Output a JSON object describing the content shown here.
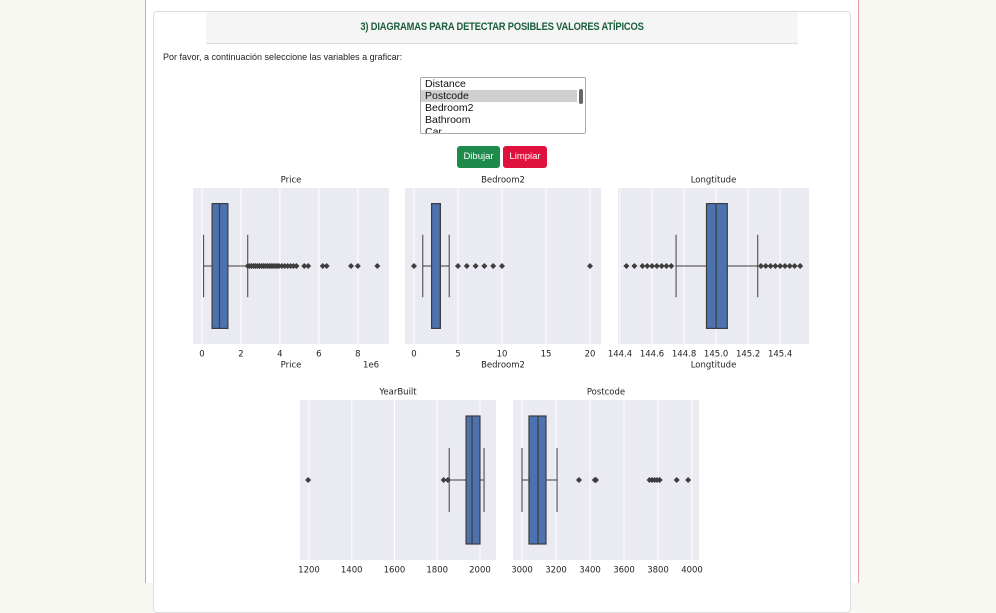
{
  "header": {
    "title": "3) DIAGRAMAS PARA DETECTAR POSIBLES VALORES ATÍPICOS"
  },
  "instructions": "Por favor, a continuación seleccione las variables a graficar:",
  "select": {
    "options": [
      "Distance",
      "Postcode",
      "Bedroom2",
      "Bathroom",
      "Car"
    ],
    "selected": 1
  },
  "buttons": {
    "draw": "Dibujar",
    "clear": "Limpiar"
  },
  "chart_data": [
    {
      "type": "box",
      "title": "Price",
      "xlabel": "Price",
      "offset_label": "1e6",
      "color": "#4c72b0",
      "grid": true,
      "xlim": [
        -0.46,
        9.6
      ],
      "xticks": [
        0,
        2,
        4,
        6,
        8
      ],
      "whisker_low": 0.085,
      "q1": 0.52,
      "median": 0.9,
      "q3": 1.33,
      "whisker_high": 2.35,
      "outliers": [
        2.35,
        2.45,
        2.55,
        2.65,
        2.75,
        2.85,
        2.95,
        3.05,
        3.15,
        3.25,
        3.35,
        3.45,
        3.55,
        3.65,
        3.75,
        3.85,
        3.95,
        4.1,
        4.25,
        4.4,
        4.55,
        4.7,
        4.85,
        5.25,
        5.45,
        6.2,
        6.4,
        7.65,
        8.0,
        9.0
      ]
    },
    {
      "type": "box",
      "title": "Bedroom2",
      "xlabel": "Bedroom2",
      "color": "#4c72b0",
      "grid": true,
      "xlim": [
        -1.02,
        21.25
      ],
      "xticks": [
        0,
        5,
        10,
        15,
        20
      ],
      "whisker_low": 1,
      "q1": 2,
      "median": 3,
      "q3": 3,
      "whisker_high": 4,
      "outliers": [
        0,
        5,
        6,
        7,
        8,
        9,
        10,
        20
      ]
    },
    {
      "type": "box",
      "title": "Longtitude",
      "xlabel": "Longtitude",
      "color": "#4c72b0",
      "grid": true,
      "xlim": [
        144.3875,
        145.58
      ],
      "xticks": [
        144.4,
        144.6,
        144.8,
        {
          "value": 145,
          "label": "145.0"
        },
        145.2,
        145.4
      ],
      "whisker_low": 144.75,
      "q1": 144.94,
      "median": 145.0,
      "q3": 145.07,
      "whisker_high": 145.26,
      "outliers": [
        144.44,
        144.49,
        144.54,
        144.57,
        144.6,
        144.63,
        144.66,
        144.69,
        144.72,
        145.28,
        145.31,
        145.34,
        145.37,
        145.4,
        145.43,
        145.46,
        145.49,
        145.525
      ]
    },
    {
      "type": "box",
      "title": "YearBuilt",
      "color": "#4c72b0",
      "grid": true,
      "xlim": [
        1158,
        2075
      ],
      "xticks": [
        1200,
        1400,
        1600,
        1800,
        2000
      ],
      "whisker_low": 1856,
      "q1": 1935,
      "median": 1963,
      "q3": 2000,
      "whisker_high": 2019,
      "outliers": [
        1196,
        1830,
        1850
      ]
    },
    {
      "type": "box",
      "title": "Postcode",
      "color": "#4c72b0",
      "grid": true,
      "xlim": [
        2947,
        4041
      ],
      "xticks": [
        3000,
        3200,
        3400,
        3600,
        3800,
        4000
      ],
      "whisker_low": 3000,
      "q1": 3041,
      "median": 3094,
      "q3": 3141,
      "whisker_high": 3206,
      "outliers": [
        3335,
        3428,
        3435,
        3750,
        3765,
        3780,
        3795,
        3810,
        3910,
        3977
      ]
    }
  ]
}
